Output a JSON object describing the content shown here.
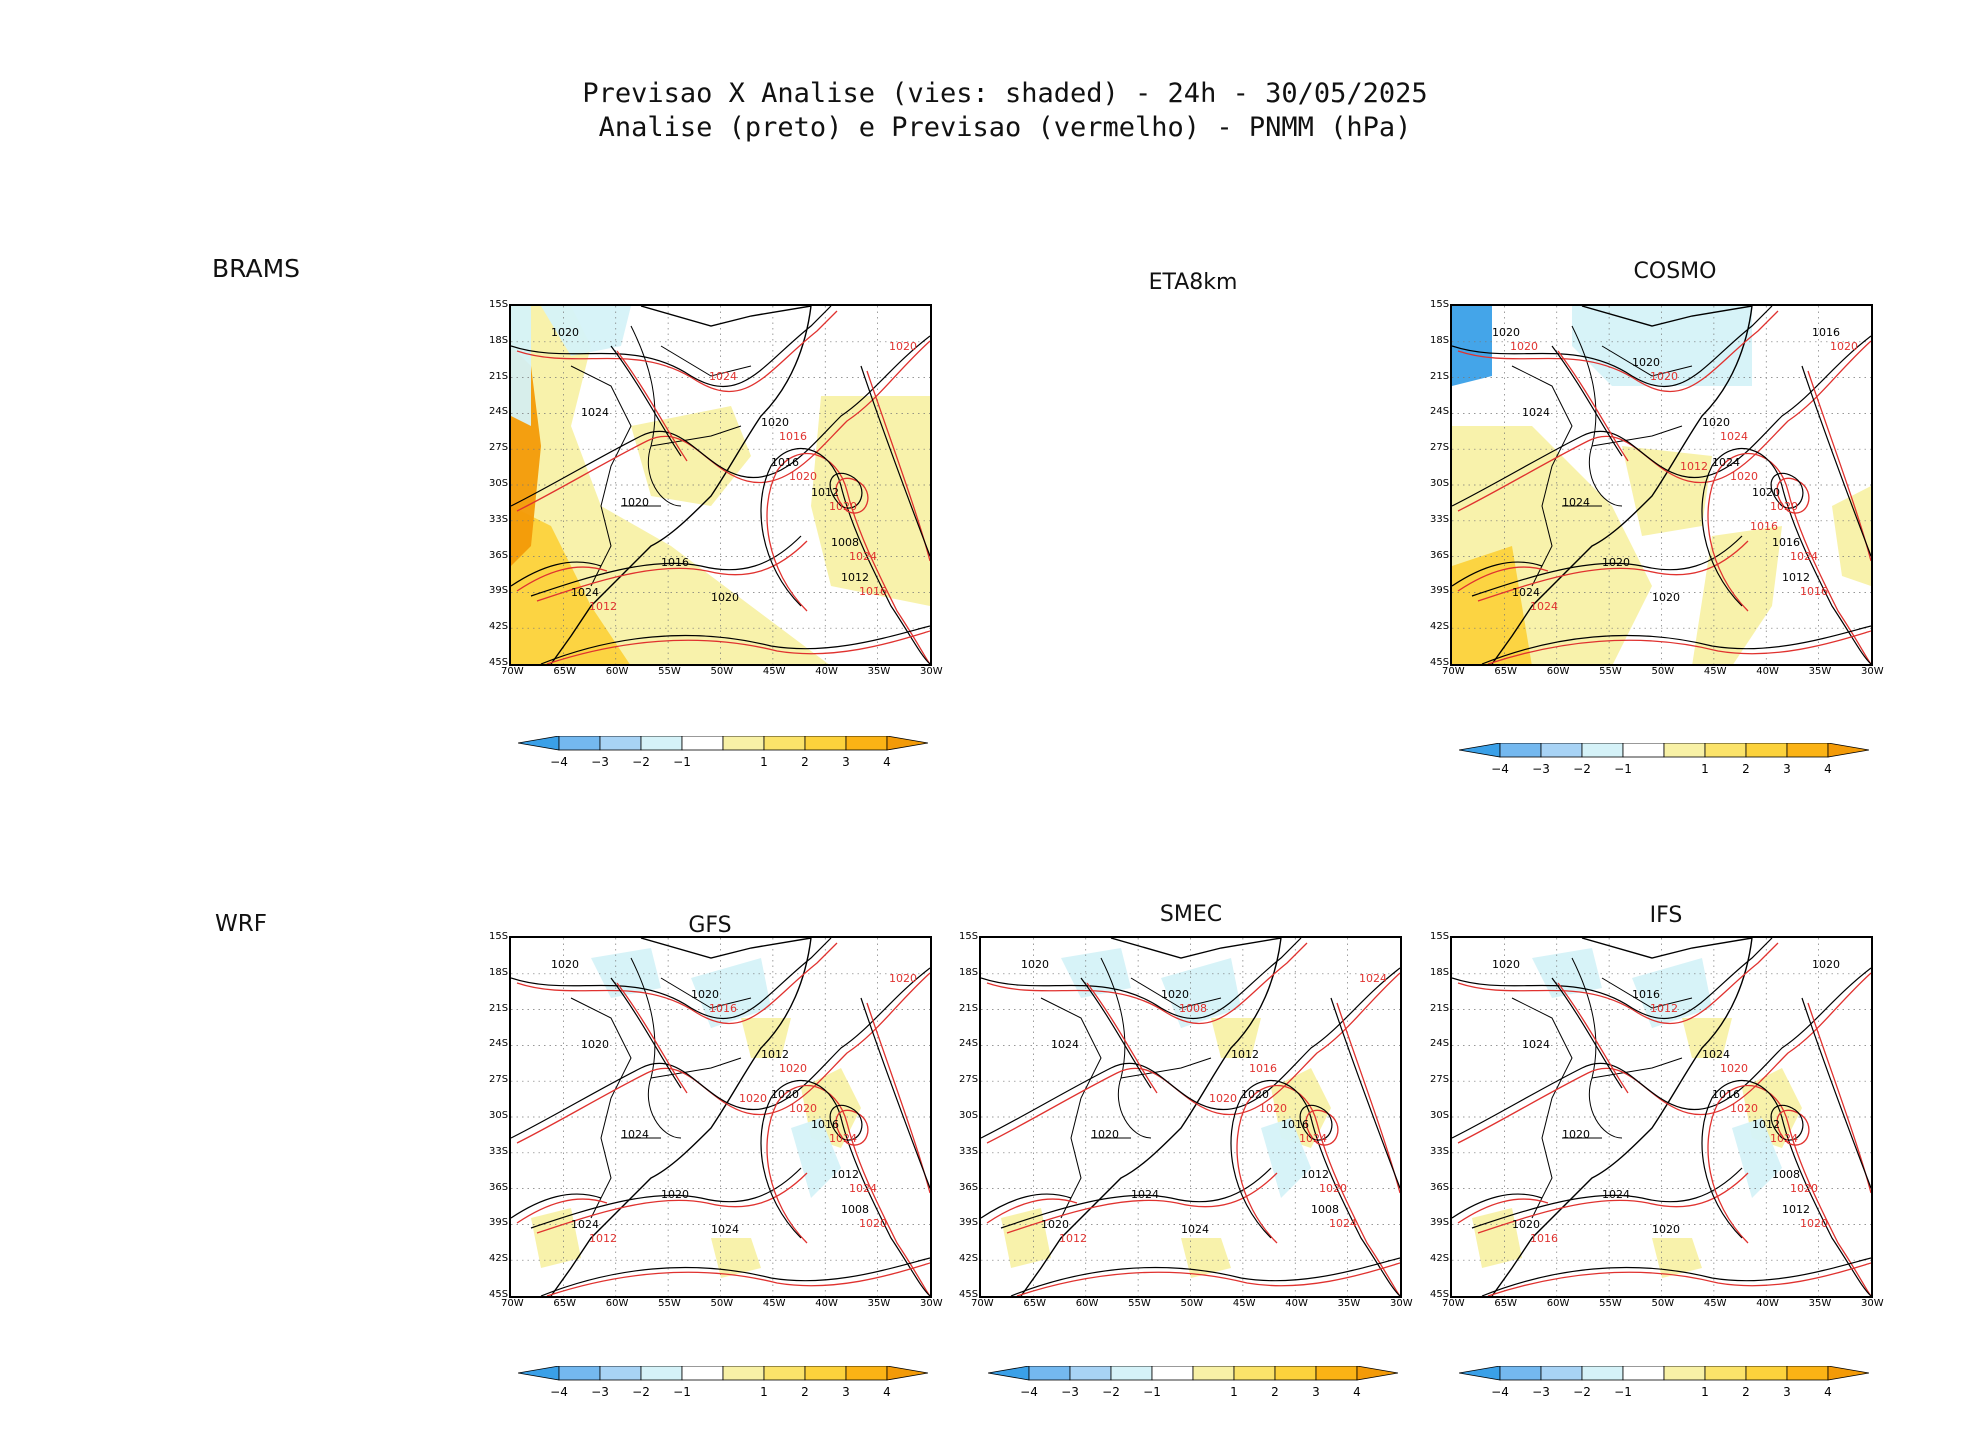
{
  "title": {
    "line1": "Previsao X Analise (vies: shaded) - 24h - 30/05/2025",
    "line2": "Analise (preto) e Previsao (vermelho) - PNMM (hPa)"
  },
  "row_labels": {
    "top": "BRAMS",
    "bottom": "WRF"
  },
  "axis": {
    "lat_ticks": [
      "15S",
      "18S",
      "21S",
      "24S",
      "27S",
      "30S",
      "33S",
      "36S",
      "39S",
      "42S",
      "45S"
    ],
    "lon_ticks": [
      "70W",
      "65W",
      "60W",
      "55W",
      "50W",
      "45W",
      "40W",
      "35W",
      "30W"
    ]
  },
  "colorbar_labels": [
    "-4",
    "-3",
    "-2",
    "-1",
    "1",
    "2",
    "3",
    "4"
  ],
  "colors": {
    "bias": [
      "#3aa0e8",
      "#74b8ef",
      "#a8d3f5",
      "#d5f2f8",
      "#ffffff",
      "#f8f1a6",
      "#fbe36a",
      "#fcd23c",
      "#fbb315",
      "#f39a07"
    ],
    "analysis_contour": "#000000",
    "forecast_contour": "#e0322f"
  },
  "panels": [
    {
      "id": "brams",
      "title": "",
      "show_map": true,
      "bias": "warm",
      "labels_black": [
        "1020",
        "1024",
        "1020",
        "1016",
        "1020",
        "1016",
        "1012",
        "1008",
        "1012",
        "1020",
        "1024"
      ],
      "labels_red": [
        "1020",
        "1020",
        "1024",
        "1016",
        "1016",
        "1012",
        "1024",
        "1020"
      ]
    },
    {
      "id": "eta8km",
      "title": "ETA8km",
      "show_map": false
    },
    {
      "id": "cosmo",
      "title": "COSMO",
      "show_map": true,
      "bias": "mixed",
      "labels_black": [
        "1020",
        "1024",
        "1024",
        "1020",
        "1020",
        "1024",
        "1020",
        "1016",
        "1012",
        "1020",
        "1024",
        "1020",
        "1016"
      ],
      "labels_red": [
        "1020",
        "1020",
        "1024",
        "1016",
        "1024",
        "1024",
        "1020",
        "1020",
        "1012",
        "1016",
        "1020"
      ]
    },
    {
      "id": "gfs",
      "title": "GFS",
      "show_map": true,
      "bias": "weak",
      "labels_black": [
        "1020",
        "1020",
        "1024",
        "1020",
        "1024",
        "1020",
        "1016",
        "1012",
        "1008",
        "1012",
        "1024",
        "1020"
      ],
      "labels_red": [
        "1020",
        "1024",
        "1024",
        "1020",
        "1020",
        "1012",
        "1016",
        "1020",
        "1020"
      ]
    },
    {
      "id": "smec",
      "title": "SMEC",
      "show_map": true,
      "bias": "weak",
      "labels_black": [
        "1020",
        "1024",
        "1020",
        "1024",
        "1024",
        "1020",
        "1016",
        "1012",
        "1008",
        "1012",
        "1020",
        "1020"
      ],
      "labels_red": [
        "1020",
        "1024",
        "1020",
        "1024",
        "1016",
        "1012",
        "1008",
        "1024",
        "1020"
      ]
    },
    {
      "id": "ifs",
      "title": "IFS",
      "show_map": true,
      "bias": "weak",
      "labels_black": [
        "1020",
        "1024",
        "1020",
        "1024",
        "1020",
        "1016",
        "1012",
        "1008",
        "1012",
        "1024",
        "1020",
        "1016",
        "1020"
      ],
      "labels_red": [
        "1020",
        "1024",
        "1020",
        "1020",
        "1020",
        "1016",
        "1012"
      ]
    }
  ]
}
